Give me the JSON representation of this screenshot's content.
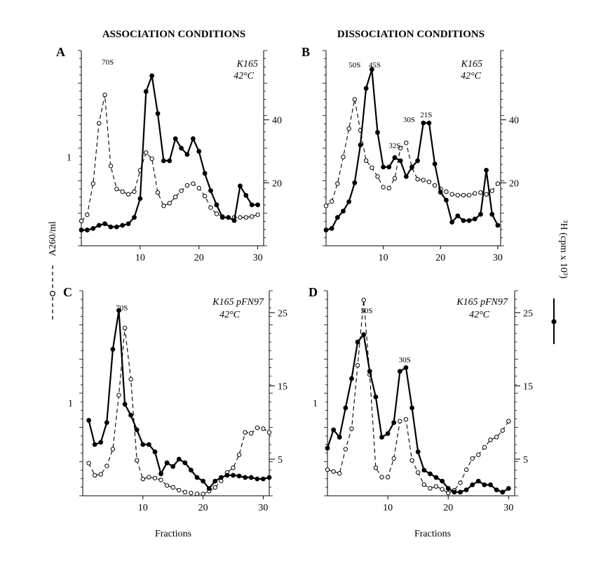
{
  "headers": {
    "left": "ASSOCIATION CONDITIONS",
    "right": "DISSOCIATION CONDITIONS"
  },
  "y_left_label": "A260/ml",
  "y_right_label": "³H (cpm x 10³)",
  "x_label": "Fractions",
  "colors": {
    "ink": "#000000",
    "background": "#ffffff"
  },
  "chart_data": [
    {
      "type": "line",
      "panel": "A",
      "strain": "K165",
      "temp": "42°C",
      "x_ticks": [
        10,
        20,
        30
      ],
      "xlim": [
        0,
        31
      ],
      "left_axis": {
        "ylim": [
          0,
          2.2
        ],
        "ticks": [
          1
        ],
        "tick_labels": [
          "1"
        ]
      },
      "right_axis": {
        "ylim": [
          0,
          62
        ],
        "ticks": [
          20,
          40
        ],
        "tick_labels": [
          "20",
          "40"
        ]
      },
      "series": [
        {
          "name": "A260/ml",
          "style": "dashed-open",
          "axis": "left",
          "x": [
            0,
            1,
            2,
            3,
            4,
            5,
            6,
            7,
            8,
            9,
            10,
            11,
            12,
            13,
            14,
            15,
            16,
            17,
            18,
            19,
            20,
            21,
            22,
            23,
            24,
            25,
            26,
            27,
            28,
            29,
            30
          ],
          "y": [
            0.28,
            0.35,
            0.7,
            1.38,
            1.7,
            0.9,
            0.64,
            0.61,
            0.58,
            0.61,
            0.85,
            1.05,
            0.98,
            0.6,
            0.45,
            0.48,
            0.55,
            0.62,
            0.68,
            0.7,
            0.65,
            0.56,
            0.43,
            0.36,
            0.33,
            0.32,
            0.32,
            0.32,
            0.32,
            0.33,
            0.35
          ]
        },
        {
          "name": "3H cpm",
          "style": "solid-filled",
          "axis": "right",
          "x": [
            0,
            1,
            2,
            3,
            4,
            5,
            6,
            7,
            8,
            9,
            10,
            11,
            12,
            13,
            14,
            15,
            16,
            17,
            18,
            19,
            20,
            21,
            22,
            23,
            24,
            25,
            26,
            27,
            28,
            29,
            30
          ],
          "y": [
            5.0,
            5.0,
            5.5,
            6.5,
            7.0,
            6.0,
            6.0,
            6.5,
            7.0,
            9.0,
            15.0,
            49.0,
            54.0,
            42.0,
            27.0,
            27.0,
            34.0,
            31.0,
            29.0,
            34.0,
            30.0,
            23.0,
            17.5,
            13.0,
            9.0,
            9.0,
            8.0,
            19.0,
            16.0,
            13.0,
            13.0
          ]
        }
      ],
      "annotations": [
        {
          "text": "70S",
          "x": 4.5
        }
      ]
    },
    {
      "type": "line",
      "panel": "B",
      "strain": "K165",
      "temp": "42°C",
      "x_ticks": [
        10,
        20,
        30
      ],
      "xlim": [
        0,
        30.5
      ],
      "left_axis": {
        "ylim": [
          0,
          2.2
        ],
        "ticks": [],
        "tick_labels": []
      },
      "right_axis": {
        "ylim": [
          0,
          62
        ],
        "ticks": [
          20,
          40
        ],
        "tick_labels": [
          "20",
          "40"
        ]
      },
      "series": [
        {
          "name": "A260/ml",
          "style": "dashed-open",
          "axis": "left",
          "x": [
            0,
            1,
            2,
            3,
            4,
            5,
            6,
            7,
            8,
            9,
            10,
            11,
            12,
            13,
            14,
            15,
            16,
            17,
            18,
            19,
            20,
            21,
            22,
            23,
            24,
            25,
            26,
            27,
            28,
            29,
            30
          ],
          "y": [
            0.45,
            0.5,
            0.7,
            1.0,
            1.32,
            1.65,
            1.3,
            0.96,
            0.88,
            0.78,
            0.66,
            0.65,
            0.76,
            1.1,
            1.16,
            0.88,
            0.75,
            0.74,
            0.72,
            0.68,
            0.64,
            0.61,
            0.58,
            0.57,
            0.57,
            0.57,
            0.59,
            0.6,
            0.58,
            0.62,
            0.7
          ]
        },
        {
          "name": "3H cpm",
          "style": "solid-filled",
          "axis": "right",
          "x": [
            0,
            1,
            2,
            3,
            4,
            5,
            6,
            7,
            8,
            9,
            10,
            11,
            12,
            13,
            14,
            15,
            16,
            17,
            18,
            19,
            20,
            21,
            22,
            23,
            24,
            25,
            26,
            27,
            28,
            29,
            30
          ],
          "y": [
            5.0,
            5.5,
            9.0,
            11.0,
            14.0,
            20.0,
            32.0,
            50.0,
            56.0,
            36.0,
            25.0,
            25.0,
            28.0,
            27.0,
            22.0,
            25.0,
            27.0,
            39.0,
            39.0,
            26.0,
            17.0,
            14.5,
            7.5,
            9.5,
            8.0,
            8.0,
            8.5,
            10.0,
            24.0,
            10.0,
            6.5
          ]
        }
      ],
      "annotations": [
        {
          "text": "50S",
          "x": 5.0
        },
        {
          "text": "45S",
          "x": 8.5
        },
        {
          "text": "32S",
          "x": 12.0
        },
        {
          "text": "30S",
          "x": 14.5
        },
        {
          "text": "21S",
          "x": 17.5
        }
      ]
    },
    {
      "type": "line",
      "panel": "C",
      "strain": "K165 pFN97",
      "temp": "42°C",
      "x_ticks": [
        10,
        20,
        30
      ],
      "xlim": [
        0,
        31
      ],
      "left_axis": {
        "ylim": [
          0,
          2.2
        ],
        "ticks": [
          1
        ],
        "tick_labels": [
          "1"
        ]
      },
      "right_axis": {
        "ylim": [
          0,
          28
        ],
        "ticks": [
          5,
          15,
          25
        ],
        "tick_labels": [
          "5",
          "15",
          "25"
        ]
      },
      "series": [
        {
          "name": "A260/ml",
          "style": "dashed-open",
          "axis": "left",
          "x": [
            1,
            2,
            3,
            4,
            5,
            6,
            7,
            8,
            9,
            10,
            11,
            12,
            13,
            14,
            15,
            16,
            17,
            18,
            19,
            20,
            21,
            22,
            23,
            24,
            25,
            26,
            27,
            28,
            29,
            30,
            31
          ],
          "y": [
            0.35,
            0.22,
            0.23,
            0.32,
            0.5,
            1.08,
            1.8,
            1.25,
            0.38,
            0.18,
            0.2,
            0.19,
            0.17,
            0.11,
            0.09,
            0.06,
            0.04,
            0.03,
            0.02,
            0.02,
            0.05,
            0.09,
            0.16,
            0.25,
            0.3,
            0.44,
            0.68,
            0.67,
            0.73,
            0.72,
            0.68
          ]
        },
        {
          "name": "3H cpm",
          "style": "solid-filled",
          "axis": "right",
          "x": [
            1,
            2,
            3,
            4,
            5,
            6,
            7,
            8,
            9,
            10,
            11,
            12,
            13,
            14,
            15,
            16,
            17,
            18,
            19,
            20,
            21,
            22,
            23,
            24,
            25,
            26,
            27,
            28,
            29,
            30,
            31
          ],
          "y": [
            10.3,
            7.0,
            7.3,
            10.0,
            20.0,
            25.3,
            12.5,
            11.0,
            9.0,
            7.0,
            7.0,
            6.0,
            3.0,
            4.5,
            4.0,
            5.0,
            4.5,
            3.5,
            2.5,
            2.0,
            1.0,
            2.0,
            2.5,
            2.8,
            2.8,
            2.7,
            2.5,
            2.5,
            2.3,
            2.3,
            2.5
          ]
        }
      ],
      "annotations": [
        {
          "text": "70S",
          "x": 6.5
        }
      ]
    },
    {
      "type": "line",
      "panel": "D",
      "strain": "K165 pFN97",
      "temp": "42°C",
      "x_ticks": [
        10,
        20,
        30
      ],
      "xlim": [
        0,
        31
      ],
      "left_axis": {
        "ylim": [
          0,
          2.2
        ],
        "ticks": [
          1
        ],
        "tick_labels": [
          "1"
        ]
      },
      "right_axis": {
        "ylim": [
          0,
          28
        ],
        "ticks": [
          5,
          15,
          25
        ],
        "tick_labels": [
          "5",
          "15",
          "25"
        ]
      },
      "series": [
        {
          "name": "A260/ml",
          "style": "dashed-open",
          "axis": "left",
          "x": [
            0,
            1,
            2,
            3,
            4,
            5,
            6,
            7,
            8,
            9,
            10,
            11,
            12,
            13,
            14,
            15,
            16,
            17,
            18,
            19,
            20,
            21,
            22,
            23,
            24,
            25,
            26,
            27,
            28,
            29,
            30
          ],
          "y": [
            0.28,
            0.26,
            0.24,
            0.5,
            0.72,
            1.4,
            2.1,
            1.3,
            0.3,
            0.2,
            0.2,
            0.4,
            0.8,
            0.82,
            0.38,
            0.25,
            0.12,
            0.08,
            0.1,
            0.07,
            0.03,
            0.06,
            0.14,
            0.28,
            0.4,
            0.44,
            0.52,
            0.6,
            0.63,
            0.7,
            0.8
          ]
        },
        {
          "name": "3H cpm",
          "style": "solid-filled",
          "axis": "right",
          "x": [
            0,
            1,
            2,
            3,
            4,
            5,
            6,
            7,
            8,
            9,
            10,
            11,
            12,
            13,
            14,
            15,
            16,
            17,
            18,
            19,
            20,
            21,
            22,
            23,
            24,
            25,
            26,
            27,
            28,
            29,
            30
          ],
          "y": [
            6.5,
            9.0,
            8.0,
            12.0,
            16.0,
            21.0,
            22.0,
            17.0,
            13.5,
            8.0,
            8.5,
            10.0,
            17.0,
            17.5,
            12.0,
            6.0,
            3.5,
            3.0,
            2.5,
            2.0,
            1.0,
            0.5,
            0.5,
            0.8,
            1.5,
            2.0,
            1.5,
            1.5,
            0.8,
            0.5,
            1.0
          ]
        }
      ],
      "annotations": [
        {
          "text": "50S",
          "x": 6.5
        },
        {
          "text": "30S",
          "x": 12.8
        }
      ]
    }
  ]
}
